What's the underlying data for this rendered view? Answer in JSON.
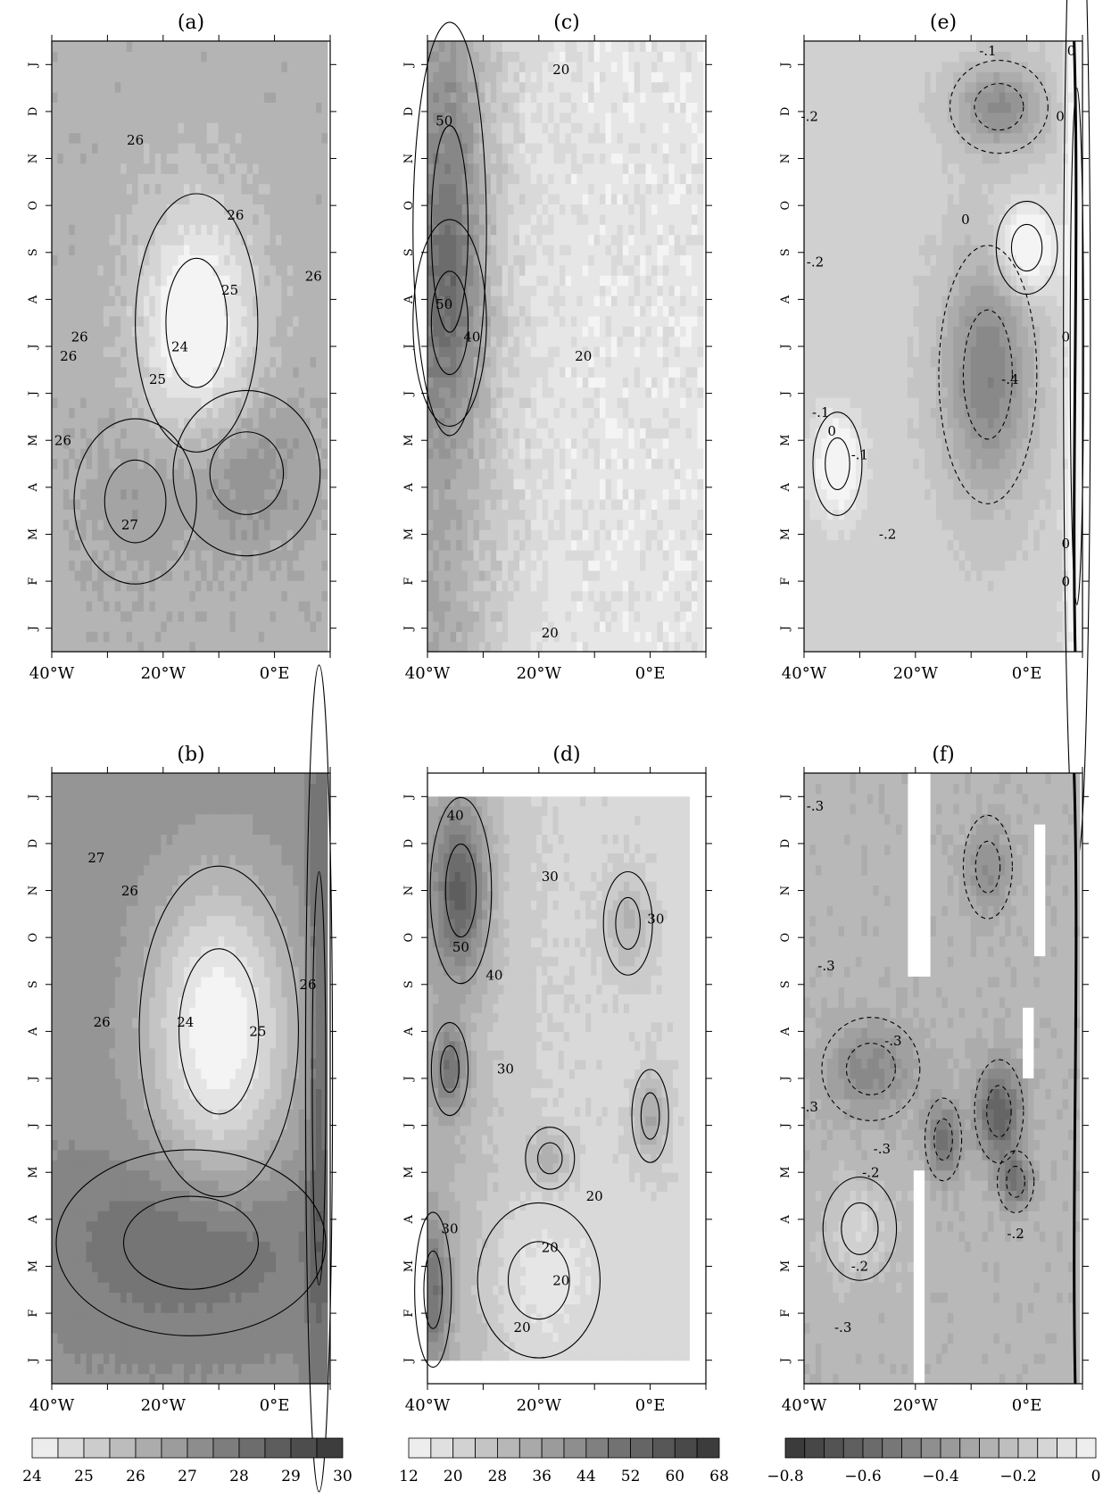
{
  "chart_data": [
    {
      "id": "a",
      "title": "(a)",
      "type": "heatmap",
      "x_ticks": [
        "40°W",
        "20°W",
        "0°E"
      ],
      "y_ticks": [
        "J",
        "F",
        "M",
        "A",
        "M",
        "J",
        "J",
        "A",
        "S",
        "O",
        "N",
        "D",
        "J"
      ],
      "xlim": [
        -40,
        10
      ],
      "ylim": [
        0,
        13
      ],
      "colorbar": "cb1",
      "field": {
        "base": 26.3,
        "eof": [
          -12,
          0,
          0.0
        ],
        "blobs": [
          {
            "x": -14,
            "y": 7.0,
            "sx": 10,
            "sy": 2.5,
            "a": -2.6
          },
          {
            "x": -5,
            "y": 3.8,
            "sx": 12,
            "sy": 1.6,
            "a": 1.1
          },
          {
            "x": -25,
            "y": 3.2,
            "sx": 10,
            "sy": 1.6,
            "a": 0.6
          }
        ],
        "noise": 0.45
      },
      "contour_labels": [
        {
          "text": "26",
          "x": -37,
          "y": 6.2
        },
        {
          "text": "26",
          "x": -35,
          "y": 6.6
        },
        {
          "text": "25",
          "x": -21,
          "y": 5.7
        },
        {
          "text": "24",
          "x": -17,
          "y": 6.4
        },
        {
          "text": "25",
          "x": -8,
          "y": 7.6
        },
        {
          "text": "26",
          "x": -7,
          "y": 9.2
        },
        {
          "text": "26",
          "x": 7,
          "y": 7.9
        },
        {
          "text": "27",
          "x": -26,
          "y": 2.6
        },
        {
          "text": "26",
          "x": -25,
          "y": 10.8
        },
        {
          "text": "26",
          "x": -38,
          "y": 4.4
        }
      ],
      "bold_zero": false,
      "dashed_negative": false
    },
    {
      "id": "b",
      "title": "(b)",
      "type": "heatmap",
      "x_ticks": [
        "40°W",
        "20°W",
        "0°E"
      ],
      "y_ticks": [
        "J",
        "F",
        "M",
        "A",
        "M",
        "J",
        "J",
        "A",
        "S",
        "O",
        "N",
        "D",
        "J"
      ],
      "xlim": [
        -40,
        10
      ],
      "ylim": [
        0,
        13
      ],
      "colorbar": "cb1",
      "field": {
        "base": 27.4,
        "eof": [
          0,
          0,
          0
        ],
        "blobs": [
          {
            "x": -10,
            "y": 7.5,
            "sx": 13,
            "sy": 3.2,
            "a": -3.4
          },
          {
            "x": -15,
            "y": 3.0,
            "sx": 22,
            "sy": 1.8,
            "a": 1.3
          },
          {
            "x": 8,
            "y": 6.5,
            "sx": 2.2,
            "sy": 8,
            "a": 1.5
          }
        ],
        "noise": 0.08
      },
      "contour_labels": [
        {
          "text": "27",
          "x": -32,
          "y": 11.1
        },
        {
          "text": "26",
          "x": -26,
          "y": 10.4
        },
        {
          "text": "26",
          "x": -31,
          "y": 7.6
        },
        {
          "text": "24",
          "x": -16,
          "y": 7.6
        },
        {
          "text": "25",
          "x": -3,
          "y": 7.4
        },
        {
          "text": "26",
          "x": 6,
          "y": 8.4
        }
      ],
      "bold_zero": false,
      "dashed_negative": false
    },
    {
      "id": "c",
      "title": "(c)",
      "type": "heatmap",
      "x_ticks": [
        "40°W",
        "20°W",
        "0°E"
      ],
      "y_ticks": [
        "J",
        "F",
        "M",
        "A",
        "M",
        "J",
        "J",
        "A",
        "S",
        "O",
        "N",
        "D",
        "J"
      ],
      "xlim": [
        -40,
        10
      ],
      "ylim": [
        0,
        13
      ],
      "colorbar": "cb2",
      "field": {
        "base": 18,
        "eof": [
          -40,
          0,
          18
        ],
        "blobs": [
          {
            "x": -36,
            "y": 9,
            "sx": 6,
            "sy": 4,
            "a": 14
          },
          {
            "x": -36,
            "y": 7,
            "sx": 6,
            "sy": 2,
            "a": 8
          }
        ],
        "noise": 6
      },
      "contour_labels": [
        {
          "text": "20",
          "x": -16,
          "y": 12.3
        },
        {
          "text": "50",
          "x": -37,
          "y": 11.2
        },
        {
          "text": "50",
          "x": -37,
          "y": 7.3
        },
        {
          "text": "40",
          "x": -32,
          "y": 6.6
        },
        {
          "text": "20",
          "x": -12,
          "y": 6.2
        },
        {
          "text": "20",
          "x": -18,
          "y": 0.3
        }
      ],
      "bold_zero": false,
      "dashed_negative": false
    },
    {
      "id": "d",
      "title": "(d)",
      "type": "heatmap",
      "x_ticks": [
        "40°W",
        "20°W",
        "0°E"
      ],
      "y_ticks": [
        "J",
        "F",
        "M",
        "A",
        "M",
        "J",
        "J",
        "A",
        "S",
        "O",
        "N",
        "D",
        "J"
      ],
      "xlim": [
        -40,
        10
      ],
      "ylim": [
        0,
        13
      ],
      "data_yrange": [
        0.5,
        12.5
      ],
      "data_xmax": 7,
      "colorbar": "cb2",
      "field": {
        "base": 23,
        "eof": [
          -40,
          0,
          10
        ],
        "blobs": [
          {
            "x": -34,
            "y": 10.5,
            "sx": 5,
            "sy": 1.8,
            "a": 26
          },
          {
            "x": -36,
            "y": 6.7,
            "sx": 3,
            "sy": 0.9,
            "a": 20
          },
          {
            "x": -39,
            "y": 2.0,
            "sx": 3,
            "sy": 1.5,
            "a": 20
          },
          {
            "x": 0,
            "y": 5.7,
            "sx": 3,
            "sy": 0.9,
            "a": 14
          },
          {
            "x": -4,
            "y": 9.8,
            "sx": 4,
            "sy": 1.0,
            "a": 10
          },
          {
            "x": -18,
            "y": 4.8,
            "sx": 4,
            "sy": 0.6,
            "a": 10
          },
          {
            "x": -20,
            "y": 2.2,
            "sx": 10,
            "sy": 1.5,
            "a": -6
          }
        ],
        "noise": 2
      },
      "contour_labels": [
        {
          "text": "40",
          "x": -35,
          "y": 12.0
        },
        {
          "text": "30",
          "x": -18,
          "y": 10.7
        },
        {
          "text": "30",
          "x": 1,
          "y": 9.8
        },
        {
          "text": "50",
          "x": -34,
          "y": 9.2
        },
        {
          "text": "40",
          "x": -28,
          "y": 8.6
        },
        {
          "text": "30",
          "x": -26,
          "y": 6.6
        },
        {
          "text": "20",
          "x": -10,
          "y": 3.9
        },
        {
          "text": "30",
          "x": -36,
          "y": 3.2
        },
        {
          "text": "20",
          "x": -18,
          "y": 2.8
        },
        {
          "text": "20",
          "x": -16,
          "y": 2.1
        },
        {
          "text": "20",
          "x": -23,
          "y": 1.1
        }
      ],
      "bold_zero": false,
      "dashed_negative": false
    },
    {
      "id": "e",
      "title": "(e)",
      "type": "heatmap",
      "x_ticks": [
        "40°W",
        "20°W",
        "0°E"
      ],
      "y_ticks": [
        "J",
        "F",
        "M",
        "A",
        "M",
        "J",
        "J",
        "A",
        "S",
        "O",
        "N",
        "D",
        "J"
      ],
      "xlim": [
        -40,
        10
      ],
      "ylim": [
        0,
        13
      ],
      "colorbar": "cb3",
      "field": {
        "base": -0.18,
        "eof": [
          0,
          0,
          0
        ],
        "blobs": [
          {
            "x": -7,
            "y": 5.9,
            "sx": 8,
            "sy": 2.5,
            "a": -0.32
          },
          {
            "x": -5,
            "y": 11.6,
            "sx": 8,
            "sy": 0.9,
            "a": -0.28
          },
          {
            "x": -34,
            "y": 4.0,
            "sx": 4,
            "sy": 1.0,
            "a": 0.28
          },
          {
            "x": 0,
            "y": 8.6,
            "sx": 5,
            "sy": 0.9,
            "a": 0.3
          },
          {
            "x": 9,
            "y": 6.5,
            "sx": 2.2,
            "sy": 10,
            "a": 0.25
          }
        ],
        "noise": 0.02
      },
      "contour_labels": [
        {
          "text": "-.1",
          "x": -7,
          "y": 12.7
        },
        {
          "text": "0",
          "x": 8,
          "y": 12.7
        },
        {
          "text": "-.2",
          "x": -39,
          "y": 11.3
        },
        {
          "text": "0",
          "x": 6,
          "y": 11.3
        },
        {
          "text": "0",
          "x": -11,
          "y": 9.1
        },
        {
          "text": "-.2",
          "x": -38,
          "y": 8.2
        },
        {
          "text": "0",
          "x": 7,
          "y": 6.6
        },
        {
          "text": "-.4",
          "x": -3,
          "y": 5.7
        },
        {
          "text": "0",
          "x": -35,
          "y": 4.6
        },
        {
          "text": "-.1",
          "x": -37,
          "y": 5.0
        },
        {
          "text": "-.1",
          "x": -30,
          "y": 4.1
        },
        {
          "text": "-.2",
          "x": -25,
          "y": 2.4
        },
        {
          "text": "0",
          "x": 7,
          "y": 2.2
        },
        {
          "text": "0",
          "x": 7,
          "y": 1.4
        }
      ],
      "bold_zero": true,
      "dashed_negative": true
    },
    {
      "id": "f",
      "title": "(f)",
      "type": "heatmap",
      "x_ticks": [
        "40°W",
        "20°W",
        "0°E"
      ],
      "y_ticks": [
        "J",
        "F",
        "M",
        "A",
        "M",
        "J",
        "J",
        "A",
        "S",
        "O",
        "N",
        "D",
        "J"
      ],
      "xlim": [
        -40,
        10
      ],
      "ylim": [
        0,
        13
      ],
      "missing_columns": [
        [
          -21,
          -17,
          8.6,
          13
        ],
        [
          -20,
          -18,
          0,
          4.5
        ],
        [
          -1,
          1,
          6.5,
          8
        ],
        [
          1,
          3,
          9,
          12
        ]
      ],
      "colorbar": "cb3",
      "field": {
        "base": -0.28,
        "eof": [
          0,
          0,
          0
        ],
        "blobs": [
          {
            "x": -5,
            "y": 5.8,
            "sx": 4,
            "sy": 1.0,
            "a": -0.38
          },
          {
            "x": -15,
            "y": 5.2,
            "sx": 3,
            "sy": 0.8,
            "a": -0.3
          },
          {
            "x": -28,
            "y": 6.7,
            "sx": 8,
            "sy": 1.0,
            "a": -0.2
          },
          {
            "x": -2,
            "y": 4.3,
            "sx": 3,
            "sy": 0.6,
            "a": -0.28
          },
          {
            "x": -30,
            "y": 3.3,
            "sx": 6,
            "sy": 1.0,
            "a": 0.12
          },
          {
            "x": -7,
            "y": 11.0,
            "sx": 4,
            "sy": 1.0,
            "a": -0.18
          }
        ],
        "noise": 0.05
      },
      "contour_labels": [
        {
          "text": "-.3",
          "x": -38,
          "y": 12.2
        },
        {
          "text": "-.3",
          "x": -36,
          "y": 8.8
        },
        {
          "text": "-.3",
          "x": -24,
          "y": 7.2
        },
        {
          "text": "-.3",
          "x": -39,
          "y": 5.8
        },
        {
          "text": "-.3",
          "x": -26,
          "y": 4.9
        },
        {
          "text": "-.2",
          "x": -28,
          "y": 4.4
        },
        {
          "text": "-.2",
          "x": -30,
          "y": 2.4
        },
        {
          "text": "-.3",
          "x": -33,
          "y": 1.1
        },
        {
          "text": "-.2",
          "x": -2,
          "y": 3.1
        }
      ],
      "bold_zero": true,
      "dashed_negative": true
    }
  ],
  "colorbars": {
    "cb1": {
      "ticks": [
        "24",
        "25",
        "26",
        "27",
        "28",
        "29",
        "30"
      ],
      "min": 24,
      "max": 30,
      "bins": 12,
      "reverse": false
    },
    "cb2": {
      "ticks": [
        "12",
        "20",
        "28",
        "36",
        "44",
        "52",
        "60",
        "68"
      ],
      "min": 12,
      "max": 68,
      "bins": 14,
      "reverse": false
    },
    "cb3": {
      "ticks": [
        "−0.8",
        "−0.6",
        "−0.4",
        "−0.2",
        "0"
      ],
      "min": -0.8,
      "max": 0,
      "bins": 16,
      "reverse": true
    }
  },
  "colors": {
    "light": "#f4f4f4",
    "dark": "#353535"
  }
}
